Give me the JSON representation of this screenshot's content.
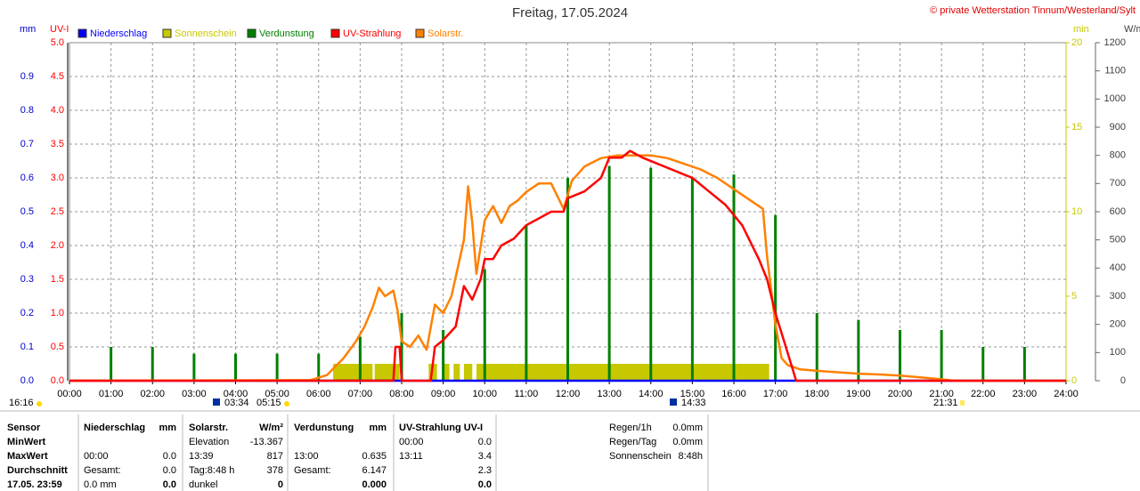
{
  "chart_data": {
    "type": "line",
    "title": "Freitag, 17.05.2024",
    "source": "© private Wetterstation Tinnum/Westerland/Sylt",
    "grid": true,
    "xlim": [
      0,
      24
    ],
    "xticks": [
      {
        "value": 0,
        "label": "00:00"
      },
      {
        "value": 1,
        "label": "01:00"
      },
      {
        "value": 2,
        "label": "02:00"
      },
      {
        "value": 3,
        "label": "03:00"
      },
      {
        "value": 4,
        "label": "04:00"
      },
      {
        "value": 5,
        "label": "05:00"
      },
      {
        "value": 6,
        "label": "06:00"
      },
      {
        "value": 7,
        "label": "07:00"
      },
      {
        "value": 8,
        "label": "08:00"
      },
      {
        "value": 9,
        "label": "09:00"
      },
      {
        "value": 10,
        "label": "10:00"
      },
      {
        "value": 11,
        "label": "11:00"
      },
      {
        "value": 12,
        "label": "12:00"
      },
      {
        "value": 13,
        "label": "13:00"
      },
      {
        "value": 14,
        "label": "14:00"
      },
      {
        "value": 15,
        "label": "15:00"
      },
      {
        "value": 16,
        "label": "16:00"
      },
      {
        "value": 17,
        "label": "17:00"
      },
      {
        "value": 18,
        "label": "18:00"
      },
      {
        "value": 19,
        "label": "19:00"
      },
      {
        "value": 20,
        "label": "20:00"
      },
      {
        "value": 21,
        "label": "21:00"
      },
      {
        "value": 22,
        "label": "22:00"
      },
      {
        "value": 23,
        "label": "23:00"
      },
      {
        "value": 24,
        "label": "24:00"
      }
    ],
    "axes": {
      "mm": {
        "label": "mm",
        "color": "#0000cc",
        "lim": [
          0,
          1
        ],
        "ticks": [
          {
            "value": 0,
            "label": "0.0"
          },
          0.1,
          0.2,
          0.3,
          0.4,
          0.5,
          0.6,
          0.7,
          0.8,
          0.9
        ]
      },
      "uv": {
        "label": "UV-I",
        "color": "#ff0000",
        "lim": [
          0,
          5
        ],
        "ticks": [
          {
            "value": 0,
            "label": "0.0"
          },
          0.5,
          {
            "value": 1,
            "label": "1.0"
          },
          1.5,
          {
            "value": 2,
            "label": "2.0"
          },
          2.5,
          {
            "value": 3,
            "label": "3.0"
          },
          3.5,
          {
            "value": 4,
            "label": "4.0"
          },
          4.5,
          {
            "value": 5,
            "label": "5.0"
          }
        ]
      },
      "min": {
        "label": "min",
        "color": "#c8c800",
        "lim": [
          0,
          20
        ],
        "ticks": [
          0,
          5,
          10,
          15,
          20
        ]
      },
      "wm2": {
        "label": "W/m²",
        "color": "#404040",
        "lim": [
          0,
          1200
        ],
        "ticks": [
          0,
          100,
          200,
          300,
          400,
          500,
          600,
          700,
          800,
          900,
          1000,
          1100,
          1200
        ]
      }
    },
    "series": [
      {
        "name": "Niederschlag",
        "color": "#0000ff",
        "axis": "mm",
        "kind": "line",
        "x": [
          0,
          24
        ],
        "values": [
          0,
          0
        ]
      },
      {
        "name": "Sonnenschein",
        "color": "#c8c800",
        "axis": "min",
        "kind": "interval",
        "x_start": [
          6.35,
          7.35,
          8.65,
          9.0,
          9.25,
          9.5,
          9.8
        ],
        "x_end": [
          7.3,
          7.95,
          8.85,
          9.15,
          9.4,
          9.7,
          16.85
        ],
        "values": [
          1,
          1,
          1,
          1,
          1,
          1,
          1
        ]
      },
      {
        "name": "Verdunstung",
        "color": "#008000",
        "axis": "mm",
        "kind": "bar",
        "x": [
          1,
          2,
          3,
          4,
          5,
          6,
          7,
          8,
          9,
          10,
          11,
          12,
          13,
          14,
          15,
          16,
          17,
          18,
          19,
          20,
          21,
          22,
          23
        ],
        "values": [
          0.1,
          0.1,
          0.08,
          0.08,
          0.08,
          0.08,
          0.13,
          0.2,
          0.15,
          0.33,
          0.46,
          0.6,
          0.635,
          0.63,
          0.6,
          0.61,
          0.49,
          0.2,
          0.18,
          0.15,
          0.15,
          0.1,
          0.1
        ]
      },
      {
        "name": "UV-Strahlung",
        "color": "#ff0000",
        "axis": "uv",
        "kind": "line",
        "x": [
          0,
          7.8,
          7.85,
          7.95,
          8.0,
          8.7,
          8.8,
          9.0,
          9.3,
          9.5,
          9.7,
          9.9,
          10.0,
          10.2,
          10.4,
          10.7,
          11.0,
          11.3,
          11.6,
          11.9,
          12.0,
          12.4,
          12.8,
          13.0,
          13.3,
          13.5,
          13.8,
          14.2,
          14.6,
          15.0,
          15.4,
          15.8,
          16.2,
          16.6,
          16.8,
          17.0,
          17.2,
          17.4,
          17.5,
          24
        ],
        "values": [
          0,
          0,
          0.5,
          0.5,
          0,
          0,
          0.5,
          0.6,
          0.8,
          1.4,
          1.2,
          1.5,
          1.8,
          1.8,
          2.0,
          2.1,
          2.3,
          2.4,
          2.5,
          2.5,
          2.7,
          2.8,
          3.0,
          3.3,
          3.3,
          3.4,
          3.3,
          3.2,
          3.1,
          3.0,
          2.8,
          2.6,
          2.3,
          1.8,
          1.5,
          1.0,
          0.6,
          0.2,
          0,
          0
        ]
      },
      {
        "name": "Solarstr.",
        "color": "#ff8000",
        "axis": "wm2",
        "kind": "line",
        "x": [
          0,
          5.8,
          6.2,
          6.6,
          6.9,
          7.1,
          7.3,
          7.45,
          7.6,
          7.8,
          7.9,
          8.0,
          8.2,
          8.4,
          8.6,
          8.8,
          9.0,
          9.2,
          9.5,
          9.6,
          9.7,
          9.8,
          10.0,
          10.2,
          10.4,
          10.6,
          10.8,
          11.0,
          11.3,
          11.6,
          11.9,
          12.1,
          12.4,
          12.8,
          13.2,
          13.6,
          14.0,
          14.4,
          14.8,
          15.2,
          15.6,
          16.0,
          16.4,
          16.7,
          16.8,
          16.9,
          17.0,
          17.15,
          17.3,
          17.6,
          18.0,
          18.5,
          19.0,
          19.5,
          20.0,
          20.5,
          21.0,
          21.3,
          24
        ],
        "values": [
          0,
          2,
          20,
          80,
          140,
          190,
          260,
          330,
          300,
          320,
          250,
          140,
          120,
          160,
          110,
          270,
          240,
          300,
          500,
          690,
          560,
          380,
          570,
          620,
          560,
          620,
          640,
          670,
          700,
          700,
          610,
          710,
          760,
          790,
          800,
          800,
          800,
          790,
          770,
          750,
          720,
          680,
          640,
          610,
          440,
          320,
          200,
          80,
          55,
          40,
          35,
          30,
          25,
          22,
          18,
          12,
          5,
          0,
          0
        ]
      }
    ],
    "annotations": [
      "16:16",
      "03:34",
      "05:15",
      "14:33",
      "21:31"
    ]
  },
  "summary": {
    "columns": [
      [
        "Sensor",
        "MinWert",
        "MaxWert",
        "Durchschnitt",
        "17.05. 23:59"
      ],
      [
        "Niederschlag",
        null,
        "00:00",
        "Gesamt:",
        "0.0 mm"
      ],
      [
        "mm",
        null,
        "0.0",
        "0.0",
        "0.0"
      ],
      [
        "Solarstr.",
        "Elevation",
        "13:39",
        "Tag:8:48 h",
        "dunkel"
      ],
      [
        "W/m²",
        "-13.367",
        "817",
        "378",
        "0"
      ],
      [
        "Verdunstung",
        null,
        "13:00",
        "Gesamt:",
        null
      ],
      [
        "mm",
        null,
        "0.635",
        "6.147",
        "0.000"
      ],
      [
        "UV-Strahlung UV-I",
        "00:00",
        "13:11",
        null,
        null
      ],
      [
        null,
        "0.0",
        "3.4",
        "2.3",
        "0.0"
      ],
      [
        "Regen/1h",
        "Regen/Tag",
        "Sonnenschein",
        null,
        null
      ],
      [
        "0.0mm",
        "0.0mm",
        "8:48h",
        null,
        null
      ]
    ]
  }
}
